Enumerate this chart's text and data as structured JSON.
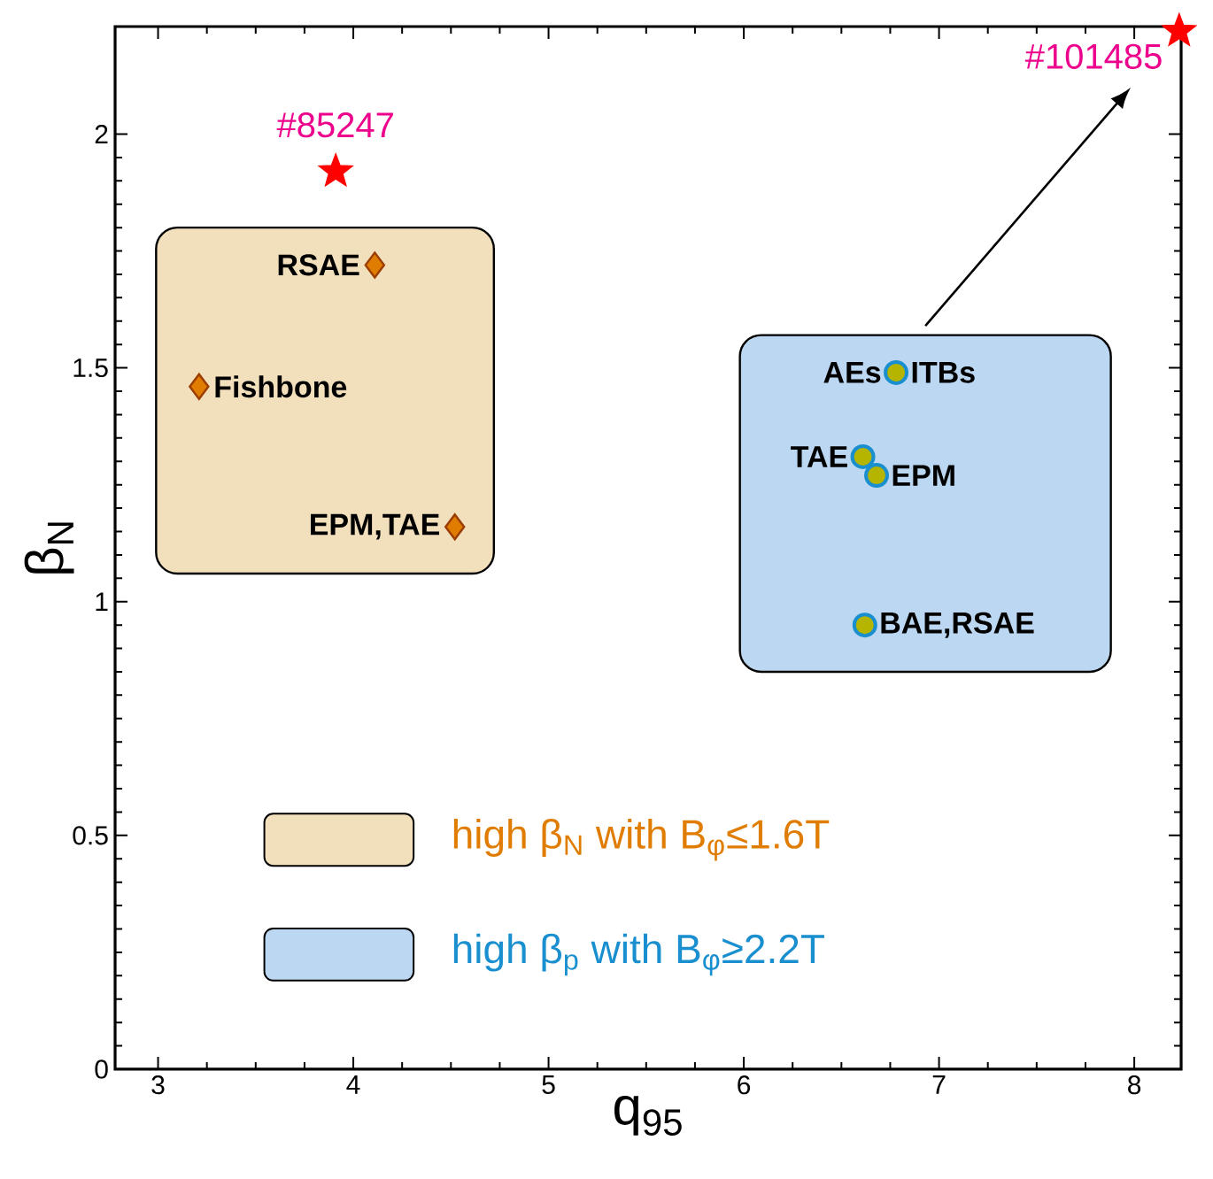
{
  "chart_data": {
    "type": "scatter",
    "xlabel": "q$_{95}$",
    "ylabel": "β$_{N}$",
    "xlim": [
      2.78,
      8.24
    ],
    "ylim": [
      0,
      2.23
    ],
    "xticks": [
      3,
      4,
      5,
      6,
      7,
      8
    ],
    "yticks": [
      0,
      0.5,
      1,
      1.5,
      2
    ],
    "grid": false,
    "legend": "bottom",
    "series": [
      {
        "name": "high β$_{N}$ with B$_{φ}$≤1.6T",
        "color": "#e07c00",
        "marker": "diamond",
        "x": [
          4.11,
          3.21,
          4.52
        ],
        "values": [
          1.72,
          1.46,
          1.16
        ]
      },
      {
        "name": "high β$_{p}$ with B$_{φ}$≥2.2T",
        "color": "#b5b500",
        "marker": "circle",
        "x": [
          6.78,
          6.61,
          6.68,
          6.62
        ],
        "values": [
          1.49,
          1.31,
          1.27,
          0.95
        ]
      },
      {
        "color": "#ff0000",
        "marker": "star",
        "x": [
          3.91,
          8.23
        ],
        "values": [
          1.92,
          2.22
        ]
      }
    ],
    "annotations": [
      {
        "text": "#85247",
        "x": 3.91,
        "y": 1.92
      },
      {
        "text": "#101485",
        "x": 8.23,
        "y": 2.22
      },
      {
        "text": "RSAE",
        "x": 4.11,
        "y": 1.72
      },
      {
        "text": "Fishbone",
        "x": 3.21,
        "y": 1.46
      },
      {
        "text": "EPM,TAE",
        "x": 4.52,
        "y": 1.16
      },
      {
        "text": "AEs",
        "x": 6.78,
        "y": 1.49
      },
      {
        "text": "ITBs",
        "x": 6.78,
        "y": 1.49
      },
      {
        "text": "TAE",
        "x": 6.61,
        "y": 1.31
      },
      {
        "text": "EPM",
        "x": 6.68,
        "y": 1.27
      },
      {
        "text": "BAE,RSAE",
        "x": 6.62,
        "y": 0.95
      }
    ]
  }
}
